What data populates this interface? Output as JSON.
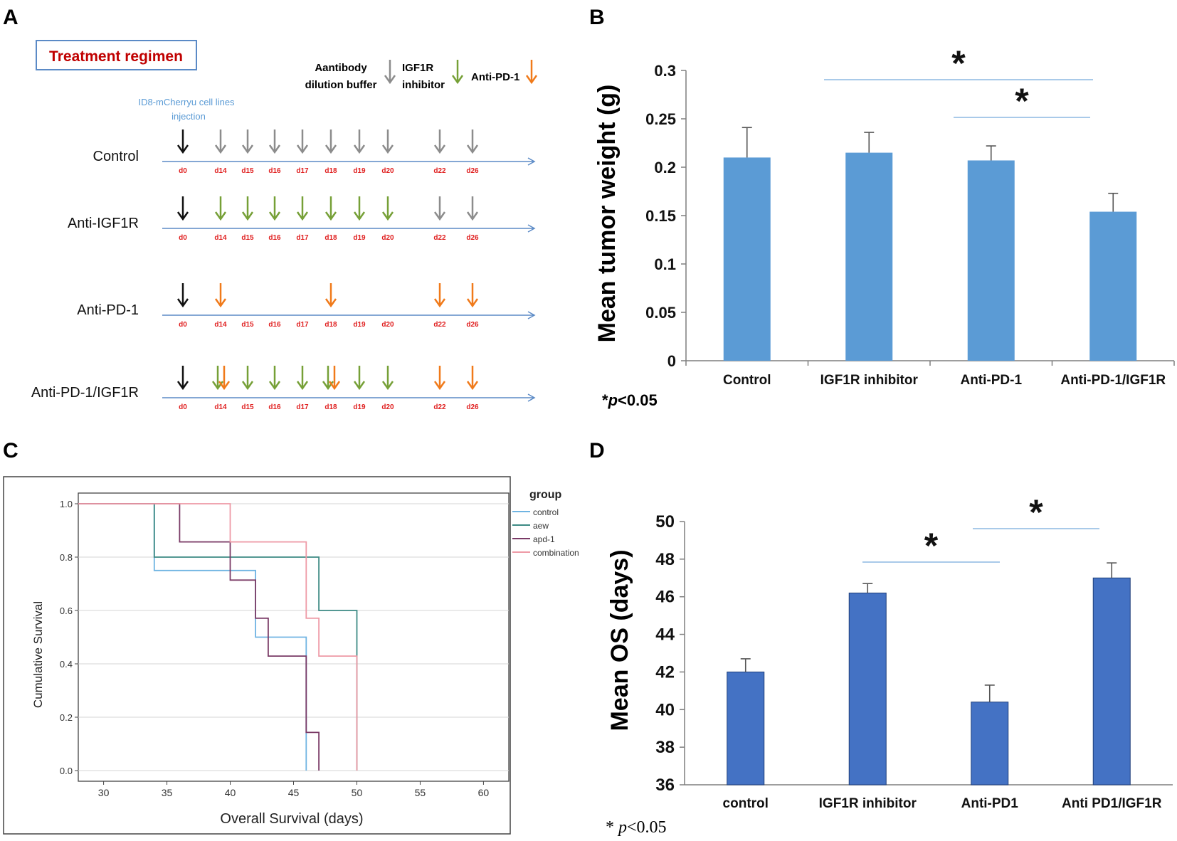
{
  "panels": {
    "A": {
      "letter": "A",
      "title": "Treatment regimen",
      "legend": [
        {
          "line1": "Aantibody",
          "line2": "dilution buffer",
          "color": "#8c8c8c"
        },
        {
          "line1": "IGF1R",
          "line2": "inhibitor",
          "color": "#76a037"
        },
        {
          "line1": "Anti-PD-1",
          "line2": "",
          "color": "#f07a1a"
        }
      ],
      "injection_line1": "ID8-mCherryu cell lines",
      "injection_line2": "injection",
      "day_labels": [
        "d0",
        "d14",
        "d15",
        "d16",
        "d17",
        "d18",
        "d19",
        "d20",
        "d22",
        "d26"
      ],
      "rows": [
        {
          "label": "Control",
          "arrows": {
            "d0": "black",
            "d14": "gray",
            "d15": "gray",
            "d16": "gray",
            "d17": "gray",
            "d18": "gray",
            "d19": "gray",
            "d20": "gray",
            "d22": "gray",
            "d26": "gray"
          }
        },
        {
          "label": "Anti-IGF1R",
          "arrows": {
            "d0": "black",
            "d14": "green",
            "d15": "green",
            "d16": "green",
            "d17": "green",
            "d18": "green",
            "d19": "green",
            "d20": "green",
            "d22": "gray",
            "d26": "gray"
          }
        },
        {
          "label": "Anti-PD-1",
          "arrows": {
            "d0": "black",
            "d14": "orange",
            "d18": "orange",
            "d22": "orange",
            "d26": "orange"
          }
        },
        {
          "label": "Anti-PD-1/IGF1R",
          "arrows": {
            "d0": "black",
            "d14": "green+orange",
            "d15": "green",
            "d16": "green",
            "d17": "green",
            "d18": "green+orange",
            "d19": "green",
            "d20": "green",
            "d22": "orange",
            "d26": "orange"
          }
        }
      ],
      "arrow_colors": {
        "black": "#111111",
        "gray": "#8c8c8c",
        "green": "#76a037",
        "orange": "#f07a1a"
      }
    }
  },
  "chart_data": [
    {
      "panel": "B",
      "type": "bar",
      "categories": [
        "Control",
        "IGF1R inhibitor",
        "Anti-PD-1",
        "Anti-PD-1/IGF1R"
      ],
      "values": [
        0.21,
        0.215,
        0.207,
        0.154
      ],
      "errors": [
        0.031,
        0.021,
        0.015,
        0.019
      ],
      "ylabel": "Mean tumor weight (g)",
      "ylim": [
        0,
        0.3
      ],
      "yticks": [
        "0",
        "0.05",
        "0.1",
        "0.15",
        "0.2",
        "0.25",
        "0.3"
      ],
      "significance": [
        {
          "from": 1,
          "to": 3,
          "label": "*"
        },
        {
          "from": 2,
          "to": 3,
          "label": "*"
        }
      ],
      "footnote_star": "*",
      "footnote_p": "p",
      "footnote_rest": "<0.05",
      "bar_color": "#5b9bd5"
    },
    {
      "panel": "C",
      "type": "line",
      "xlabel": "Overall Survival (days)",
      "ylabel": "Cumulative Survival",
      "xlim": [
        28,
        62
      ],
      "ylim": [
        -0.04,
        1.04
      ],
      "xticks": [
        "30",
        "35",
        "40",
        "45",
        "50",
        "55",
        "60"
      ],
      "yticks": [
        "0.0",
        "0.2",
        "0.4",
        "0.6",
        "0.8",
        "1.0"
      ],
      "legend_title": "group",
      "series": [
        {
          "name": "control",
          "color": "#6fb4e2",
          "points": [
            [
              28,
              1.0
            ],
            [
              34,
              1.0
            ],
            [
              34,
              0.75
            ],
            [
              42,
              0.75
            ],
            [
              42,
              0.5
            ],
            [
              46,
              0.5
            ],
            [
              46,
              0.0
            ]
          ]
        },
        {
          "name": "aew",
          "color": "#3d8a84",
          "points": [
            [
              28,
              1.0
            ],
            [
              34,
              1.0
            ],
            [
              34,
              0.8
            ],
            [
              47,
              0.8
            ],
            [
              47,
              0.6
            ],
            [
              50,
              0.6
            ],
            [
              50,
              0.0
            ]
          ]
        },
        {
          "name": "apd-1",
          "color": "#7a3a66",
          "points": [
            [
              28,
              1.0
            ],
            [
              36,
              1.0
            ],
            [
              36,
              0.857
            ],
            [
              40,
              0.857
            ],
            [
              40,
              0.714
            ],
            [
              42,
              0.714
            ],
            [
              42,
              0.571
            ],
            [
              43,
              0.571
            ],
            [
              43,
              0.429
            ],
            [
              46,
              0.429
            ],
            [
              46,
              0.143
            ],
            [
              47,
              0.143
            ],
            [
              47,
              0.0
            ]
          ]
        },
        {
          "name": "combination",
          "color": "#ee9aa6",
          "points": [
            [
              28,
              1.0
            ],
            [
              40,
              1.0
            ],
            [
              40,
              0.857
            ],
            [
              46,
              0.857
            ],
            [
              46,
              0.571
            ],
            [
              47,
              0.571
            ],
            [
              47,
              0.429
            ],
            [
              50,
              0.429
            ],
            [
              50,
              0.0
            ]
          ]
        }
      ]
    },
    {
      "panel": "D",
      "type": "bar",
      "categories": [
        "control",
        "IGF1R inhibitor",
        "Anti-PD1",
        "Anti PD1/IGF1R"
      ],
      "values": [
        42.0,
        46.2,
        40.4,
        47.0
      ],
      "errors": [
        0.7,
        0.5,
        0.9,
        0.8
      ],
      "ylabel": "Mean OS (days)",
      "ylim": [
        36,
        50
      ],
      "yticks": [
        "36",
        "38",
        "40",
        "42",
        "44",
        "46",
        "48",
        "50"
      ],
      "significance": [
        {
          "from": 1,
          "to": 2,
          "label": "*"
        },
        {
          "from": 2,
          "to": 3,
          "label": "*"
        }
      ],
      "footnote_star": "*",
      "footnote_p": "p",
      "footnote_rest": "<0.05",
      "bar_color": "#4472c4"
    }
  ],
  "panel_letters": {
    "B": "B",
    "C": "C",
    "D": "D"
  }
}
